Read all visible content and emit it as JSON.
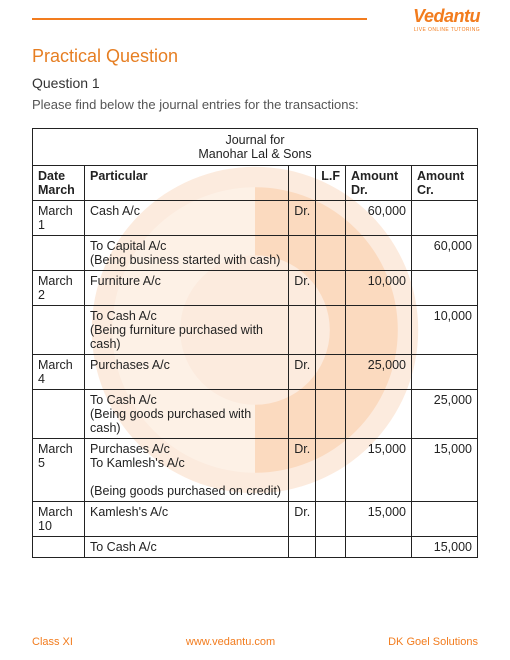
{
  "brand": {
    "name": "Vedantu",
    "tagline": "LIVE ONLINE TUTORING"
  },
  "heading": "Practical Question",
  "question_num": "Question 1",
  "intro": "Please find below the journal entries for the transactions:",
  "journal": {
    "title1": "Journal for",
    "title2": "Manohar Lal & Sons",
    "headers": {
      "date": "Date March",
      "particular": "Particular",
      "lf": "L.F",
      "dr": "Amount Dr.",
      "cr": "Amount Cr."
    },
    "rows": [
      {
        "date": "March 1",
        "part": "Cash A/c",
        "drcr": "Dr.",
        "dr": "60,000",
        "cr": ""
      },
      {
        "date": "",
        "part": "To Capital A/c\n(Being business started with cash)",
        "drcr": "",
        "dr": "",
        "cr": "60,000"
      },
      {
        "date": "March 2",
        "part": "Furniture A/c",
        "drcr": "Dr.",
        "dr": "10,000",
        "cr": ""
      },
      {
        "date": "",
        "part": "To Cash A/c\n(Being furniture purchased with cash)",
        "drcr": "",
        "dr": "",
        "cr": "10,000"
      },
      {
        "date": "March 4",
        "part": "Purchases A/c",
        "drcr": "Dr.",
        "dr": "25,000",
        "cr": ""
      },
      {
        "date": "",
        "part": "To Cash A/c\n(Being goods purchased with cash)",
        "drcr": "",
        "dr": "",
        "cr": "25,000"
      },
      {
        "date": "March 5",
        "part": "Purchases A/c\nTo Kamlesh's A/c\n\n(Being goods purchased on credit)",
        "drcr": "Dr.",
        "dr": "15,000",
        "cr": "15,000"
      },
      {
        "date": "March 10",
        "part": "Kamlesh's A/c",
        "drcr": "Dr.",
        "dr": "15,000",
        "cr": ""
      },
      {
        "date": "",
        "part": "To Cash A/c",
        "drcr": "",
        "dr": "",
        "cr": "15,000"
      }
    ]
  },
  "footer": {
    "left": "Class XI",
    "mid": "www.vedantu.com",
    "right": "DK Goel Solutions"
  },
  "colors": {
    "accent": "#f27c1e",
    "wm1": "#f7b88a",
    "wm2": "#f27c1e"
  }
}
